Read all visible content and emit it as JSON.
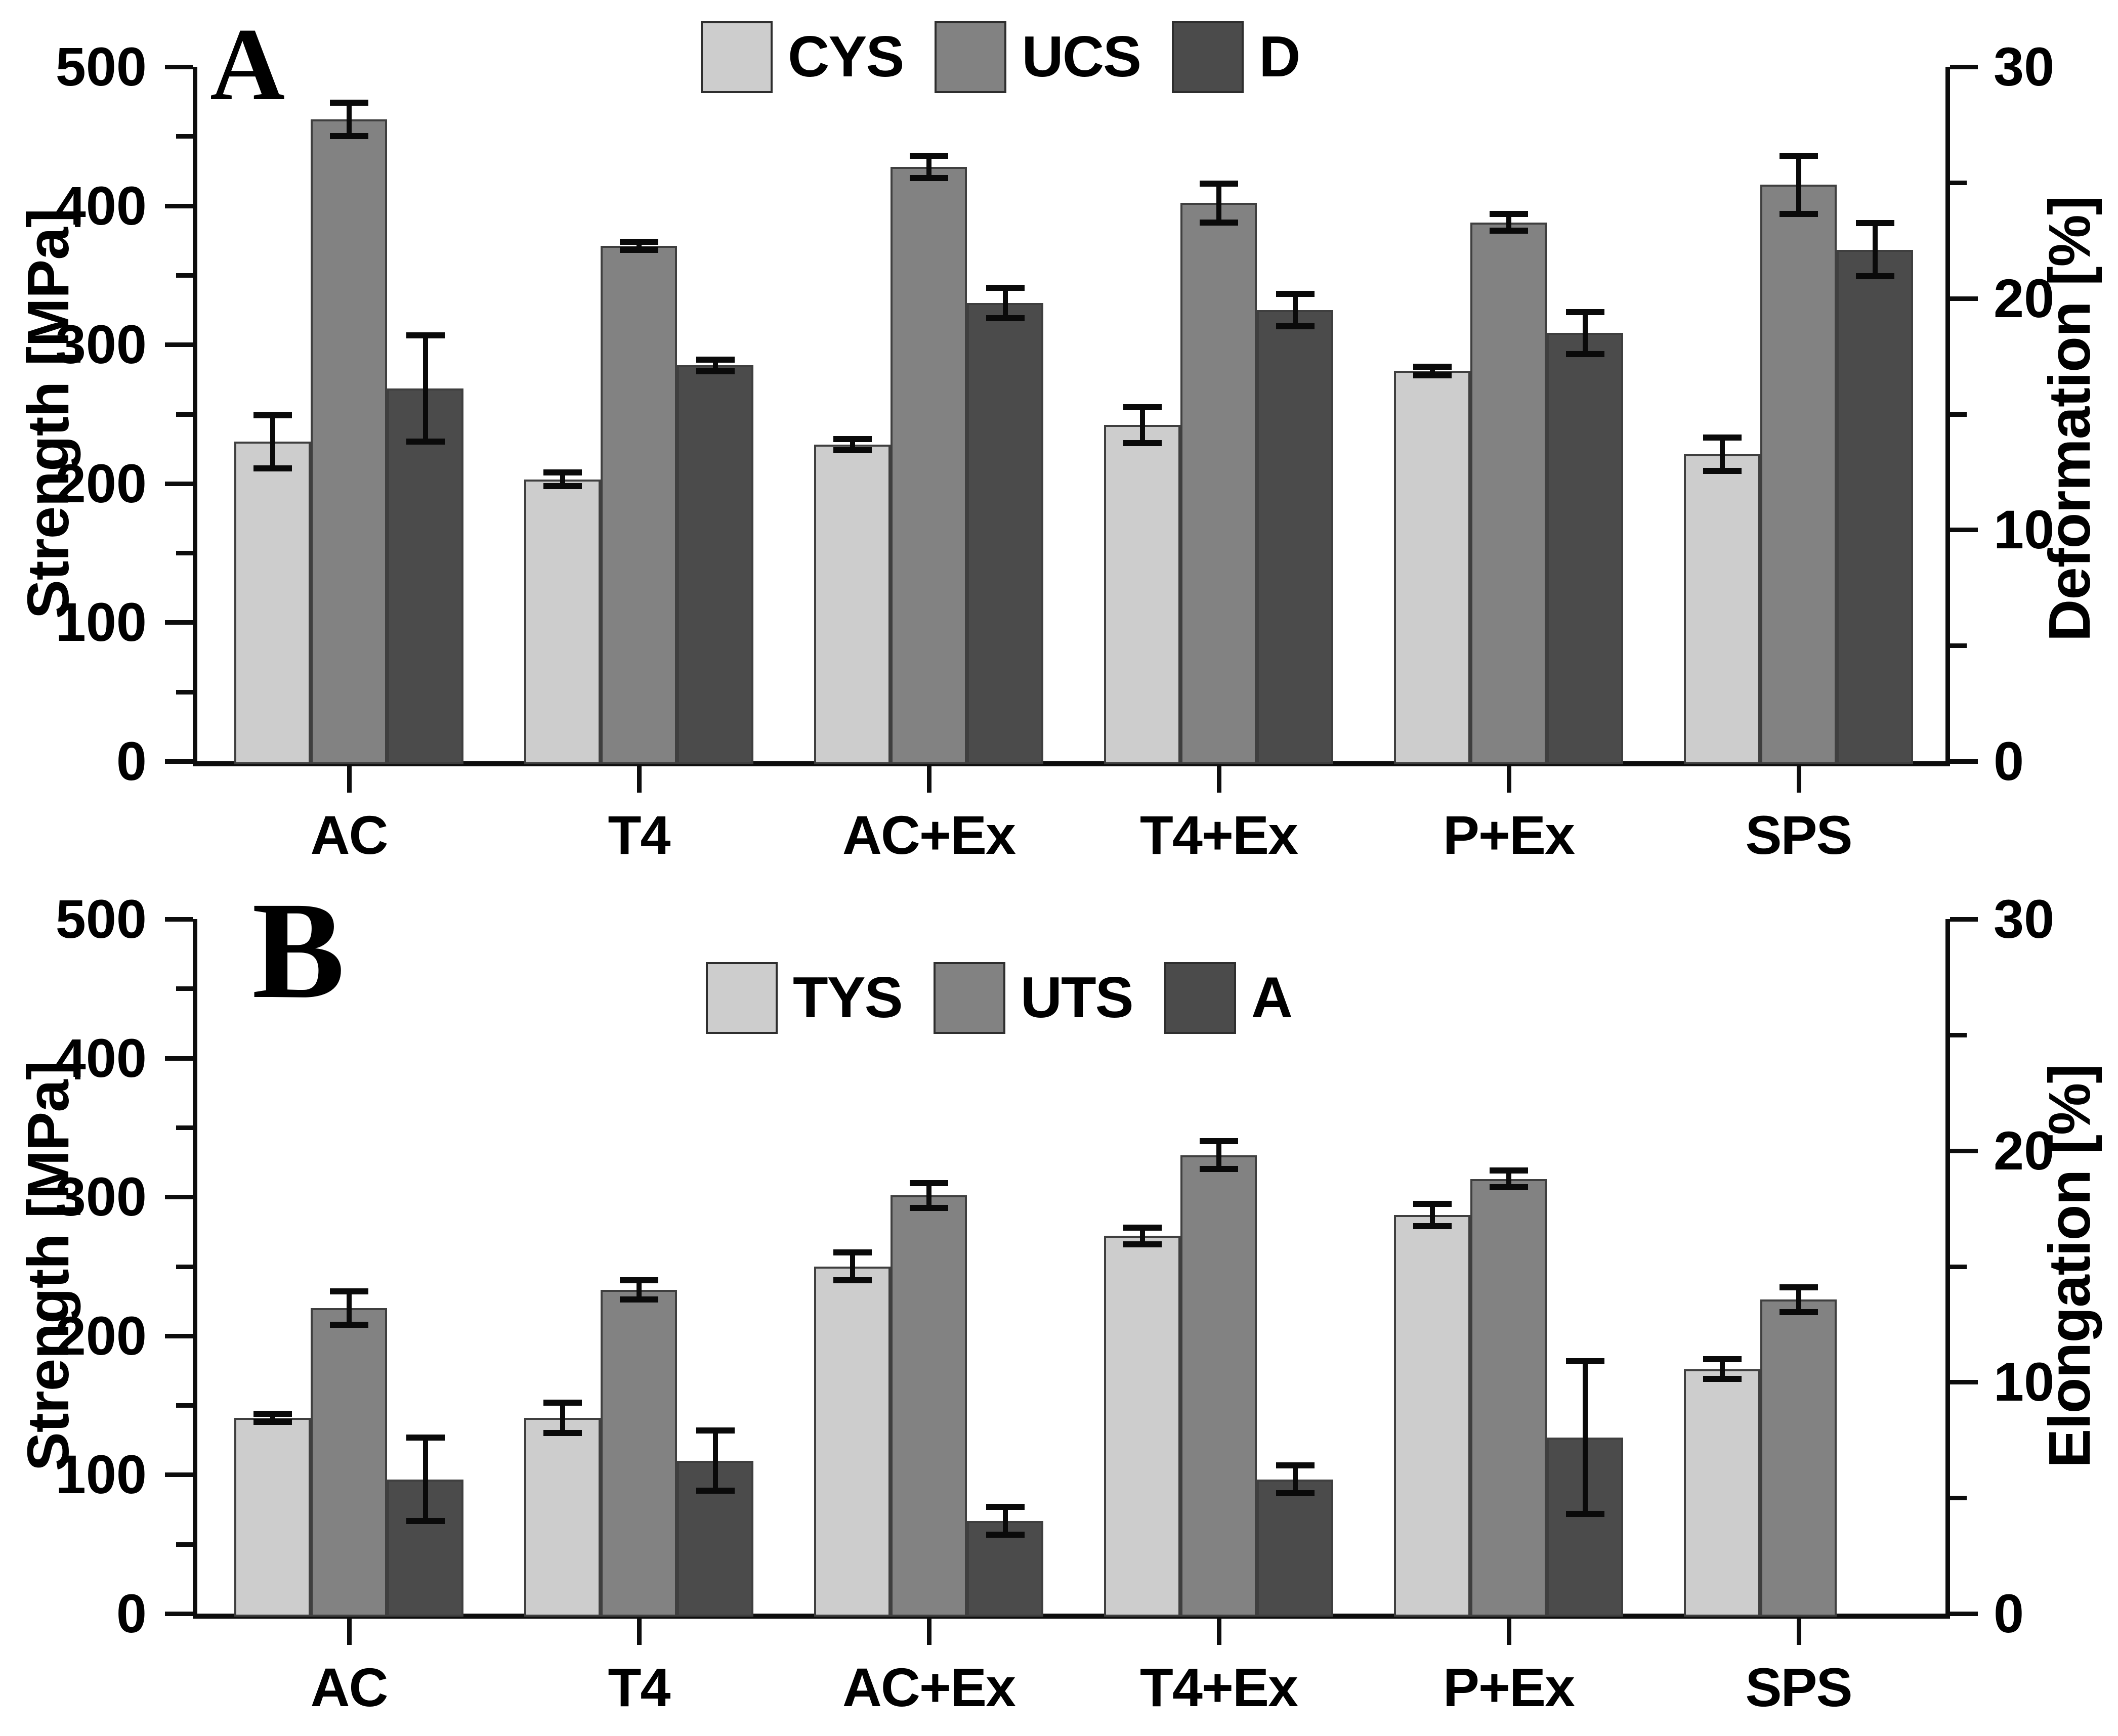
{
  "figure": {
    "background": "#ffffff"
  },
  "chart_data": [
    {
      "type": "bar",
      "panel_label": "A",
      "categories": [
        "AC",
        "T4",
        "AC+Ex",
        "T4+Ex",
        "P+Ex",
        "SPS"
      ],
      "left_axis": {
        "label": "Strength [MPa]",
        "min": 0,
        "max": 500,
        "tick_labels": [
          "0",
          "100",
          "200",
          "300",
          "400",
          "500"
        ],
        "major_step": 100,
        "minor_step": 50
      },
      "right_axis": {
        "label": "Deformation [%]",
        "min": 0,
        "max": 30,
        "tick_labels": [
          "0",
          "10",
          "20",
          "30"
        ],
        "major_step": 10,
        "minor_step": 5
      },
      "legend": [
        "CYS",
        "UCS",
        "D"
      ],
      "grid": false,
      "legend_position": "top-center",
      "series": [
        {
          "name": "CYS",
          "axis": "left",
          "color": "#cdcdcd",
          "values": [
            230,
            203,
            228,
            242,
            281,
            221
          ],
          "errors": [
            19,
            5,
            4,
            13,
            3,
            12
          ]
        },
        {
          "name": "UCS",
          "axis": "left",
          "color": "#828282",
          "values": [
            462,
            371,
            428,
            402,
            388,
            415
          ],
          "errors": [
            12,
            3,
            8,
            14,
            6,
            21
          ]
        },
        {
          "name": "D",
          "axis": "right",
          "color": "#4b4b4b",
          "values": [
            16.1,
            17.1,
            19.8,
            19.5,
            18.5,
            22.1
          ],
          "errors": [
            2.3,
            0.25,
            0.65,
            0.7,
            0.9,
            1.15
          ]
        }
      ]
    },
    {
      "type": "bar",
      "panel_label": "B",
      "categories": [
        "AC",
        "T4",
        "AC+Ex",
        "T4+Ex",
        "P+Ex",
        "SPS"
      ],
      "left_axis": {
        "label": "Strength [MPa]",
        "min": 0,
        "max": 500,
        "tick_labels": [
          "0",
          "100",
          "200",
          "300",
          "400",
          "500"
        ],
        "major_step": 100,
        "minor_step": 50
      },
      "right_axis": {
        "label": "Elongation [%]",
        "min": 0,
        "max": 30,
        "tick_labels": [
          "0",
          "10",
          "20",
          "30"
        ],
        "major_step": 10,
        "minor_step": 5
      },
      "legend": [
        "TYS",
        "UTS",
        "A"
      ],
      "grid": false,
      "legend_position": "top-center",
      "series": [
        {
          "name": "TYS",
          "axis": "left",
          "color": "#cdcdcd",
          "values": [
            141,
            141,
            250,
            272,
            287,
            176
          ],
          "errors": [
            3,
            11,
            10,
            6,
            8,
            7
          ]
        },
        {
          "name": "UTS",
          "axis": "left",
          "color": "#828282",
          "values": [
            220,
            233,
            301,
            330,
            313,
            226
          ],
          "errors": [
            12,
            7,
            9,
            10,
            6,
            9
          ]
        },
        {
          "name": "A",
          "axis": "right",
          "color": "#4b4b4b",
          "values": [
            5.8,
            6.6,
            4.0,
            5.8,
            7.6,
            null
          ],
          "errors": [
            1.8,
            1.3,
            0.6,
            0.6,
            3.3,
            null
          ]
        }
      ]
    }
  ]
}
